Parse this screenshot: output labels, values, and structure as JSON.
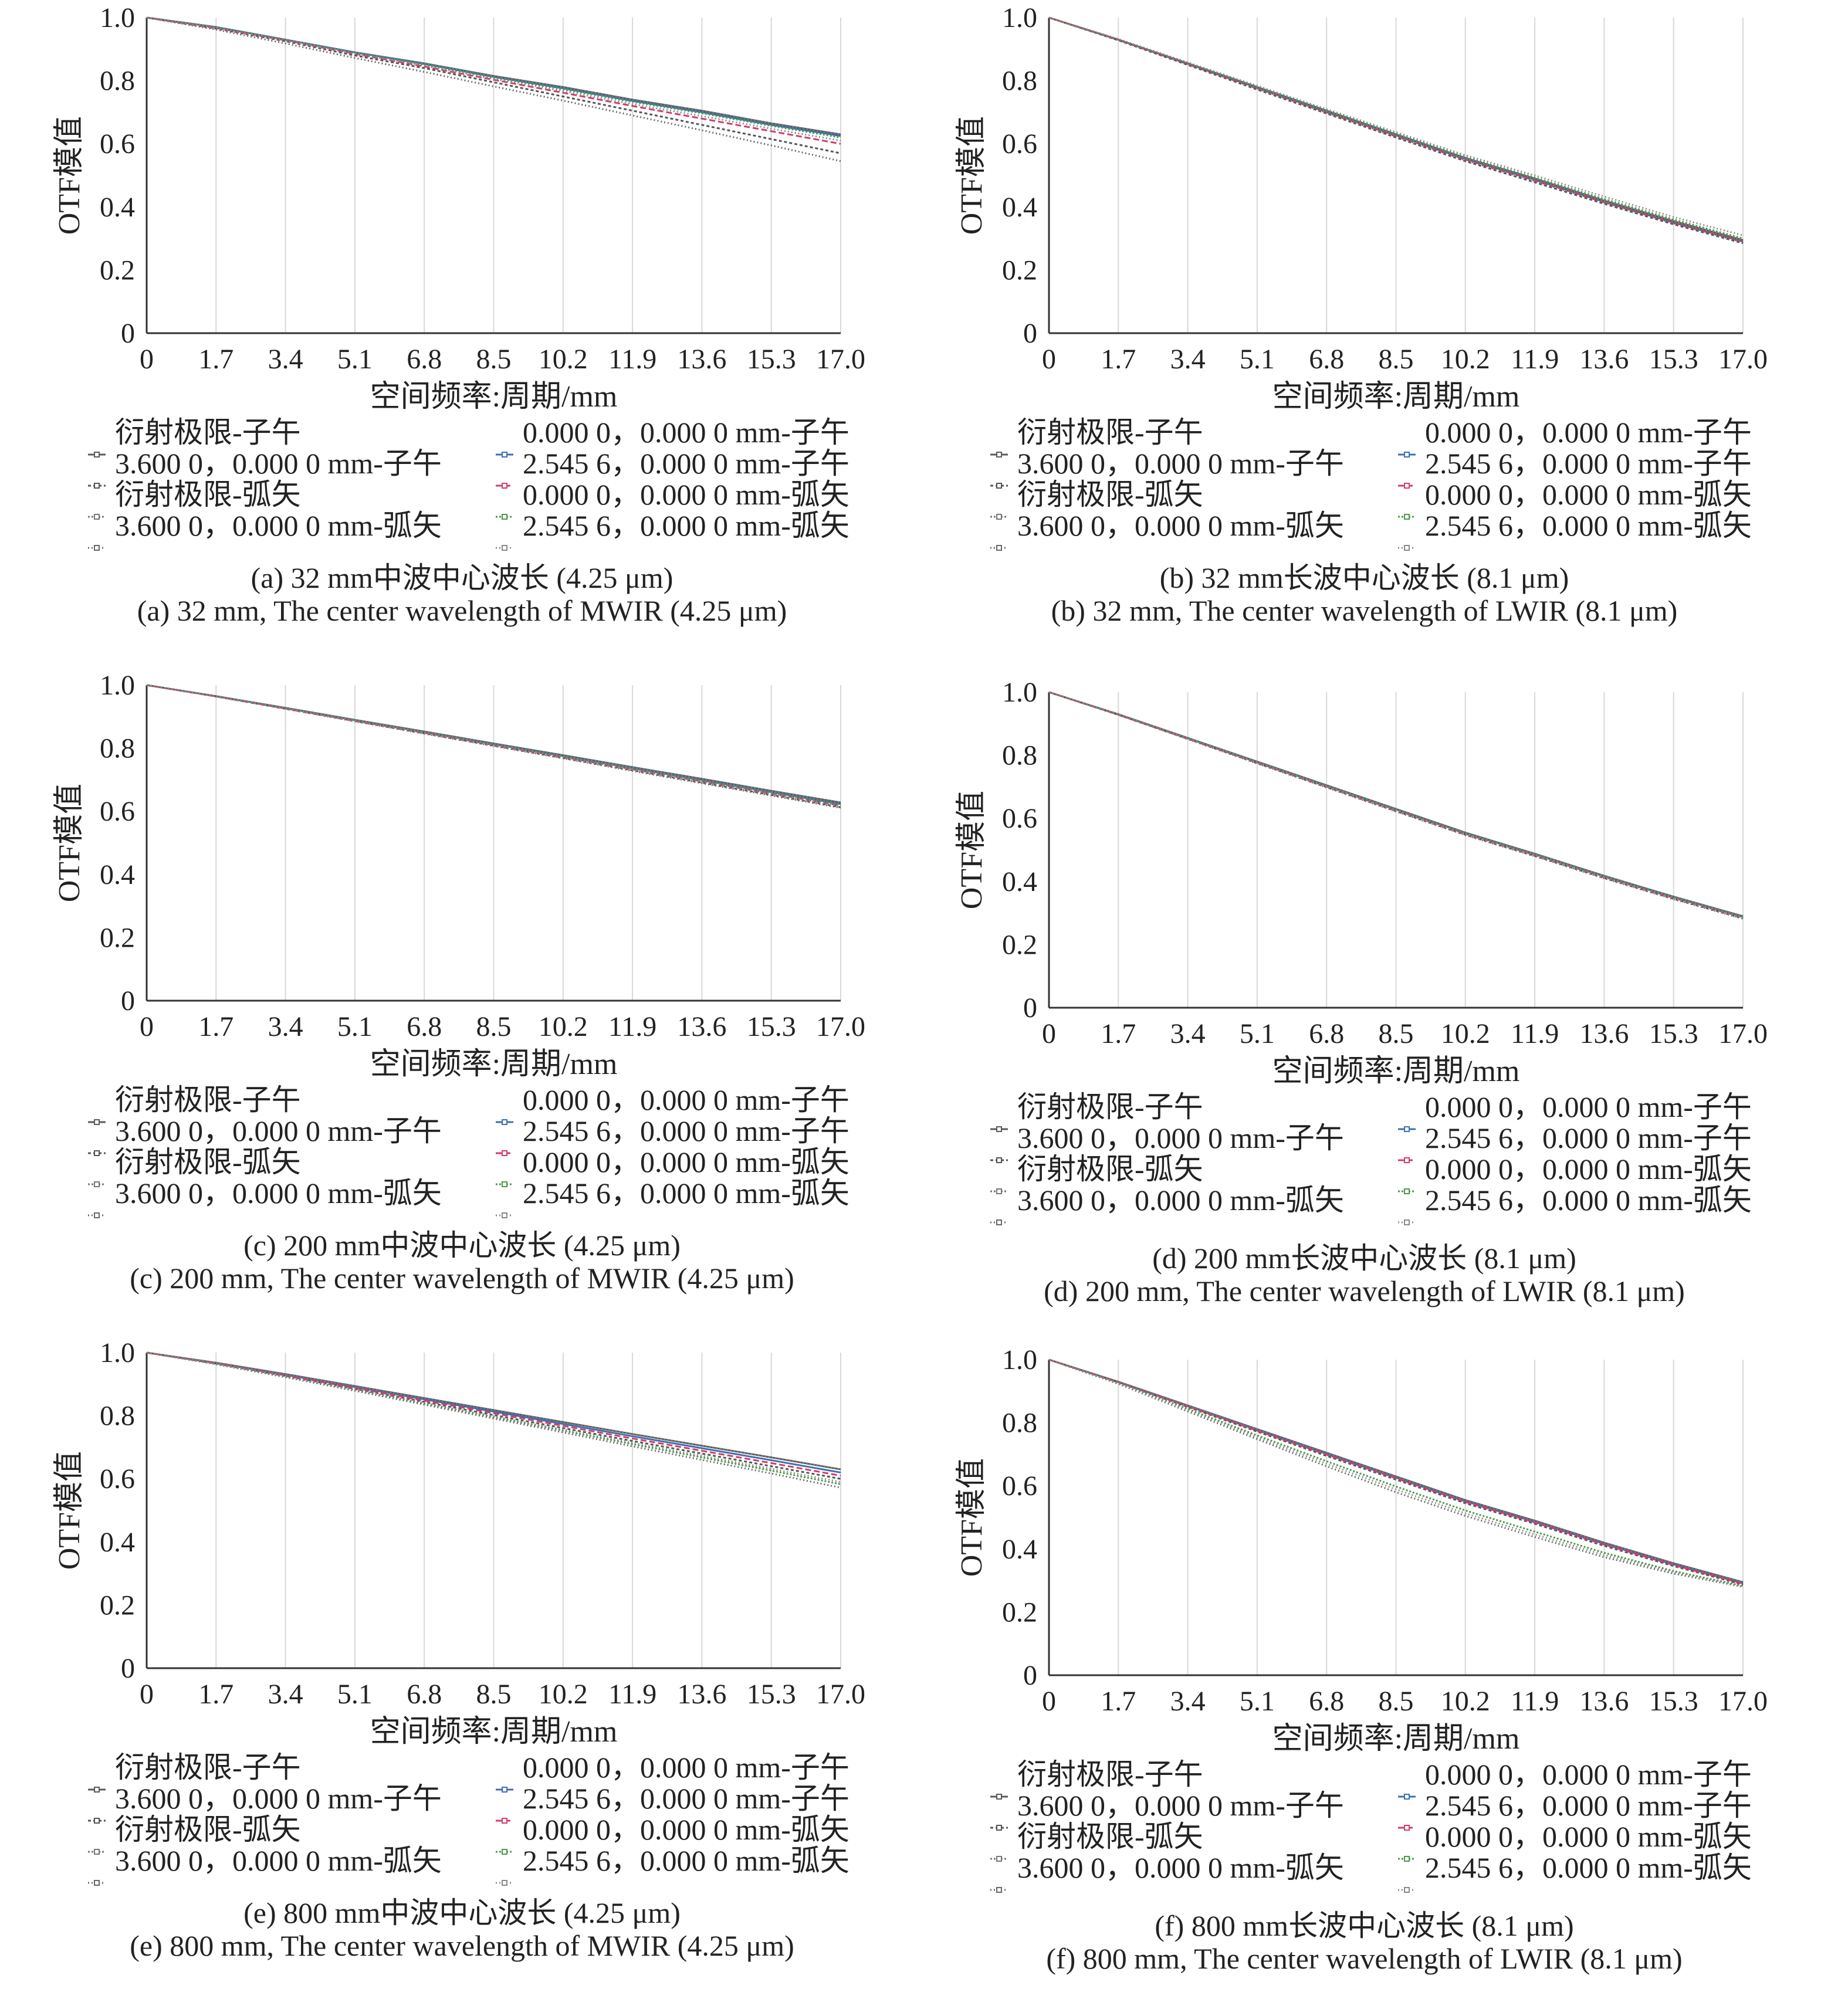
{
  "legend_template": [
    {
      "label": "衍射极限-子午",
      "color": "#5a5a5a",
      "dash": ""
    },
    {
      "label": "0.000 0，0.000 0 mm-子午",
      "color": "#3c6fb0",
      "dash": ""
    },
    {
      "label": "3.600 0，0.000 0 mm-子午",
      "color": "#555555",
      "dash": "5,4"
    },
    {
      "label": "2.545 6，0.000 0 mm-子午",
      "color": "#d33c6a",
      "dash": "10,5"
    },
    {
      "label": "衍射极限-弧矢",
      "color": "#777777",
      "dash": "3,3"
    },
    {
      "label": "0.000 0，0.000 0 mm-弧矢",
      "color": "#4a9a4a",
      "dash": "3,3"
    },
    {
      "label": "3.600 0，0.000 0 mm-弧矢",
      "color": "#666666",
      "dash": "2,4"
    },
    {
      "label": "2.545 6，0.000 0 mm-弧矢",
      "color": "#888888",
      "dash": "2,4"
    }
  ],
  "chart_data": [
    {
      "type": "line",
      "xlabel": "空间频率:周期/mm",
      "ylabel": "OTF模值",
      "xticks": [
        "0",
        "1.7",
        "3.4",
        "5.1",
        "6.8",
        "8.5",
        "10.2",
        "11.9",
        "13.6",
        "15.3",
        "17.0"
      ],
      "yticks": [
        "0",
        "0.2",
        "0.4",
        "0.6",
        "0.8",
        "1.0"
      ],
      "xlim": [
        0,
        17
      ],
      "ylim": [
        0,
        1
      ],
      "x": [
        0,
        1.7,
        3.4,
        5.1,
        6.8,
        8.5,
        10.2,
        11.9,
        13.6,
        15.3,
        17.0
      ],
      "series": [
        {
          "name": "衍射极限-子午",
          "values": [
            1.0,
            0.97,
            0.93,
            0.89,
            0.855,
            0.815,
            0.78,
            0.74,
            0.705,
            0.665,
            0.63
          ]
        },
        {
          "name": "0.000 0，0.000 0 mm-子午",
          "values": [
            1.0,
            0.97,
            0.93,
            0.89,
            0.853,
            0.812,
            0.776,
            0.736,
            0.7,
            0.66,
            0.625
          ]
        },
        {
          "name": "3.600 0，0.000 0 mm-子午",
          "values": [
            1.0,
            0.965,
            0.925,
            0.88,
            0.84,
            0.795,
            0.75,
            0.705,
            0.66,
            0.615,
            0.57
          ]
        },
        {
          "name": "2.545 6，0.000 0 mm-子午",
          "values": [
            1.0,
            0.967,
            0.928,
            0.885,
            0.845,
            0.803,
            0.762,
            0.72,
            0.68,
            0.64,
            0.6
          ]
        },
        {
          "name": "衍射极限-弧矢",
          "values": [
            1.0,
            0.97,
            0.93,
            0.89,
            0.855,
            0.815,
            0.78,
            0.74,
            0.705,
            0.665,
            0.63
          ]
        },
        {
          "name": "0.000 0，0.000 0 mm-弧矢",
          "values": [
            1.0,
            0.97,
            0.93,
            0.888,
            0.851,
            0.81,
            0.773,
            0.733,
            0.697,
            0.657,
            0.62
          ]
        },
        {
          "name": "3.600 0，0.000 0 mm-弧矢",
          "values": [
            1.0,
            0.962,
            0.918,
            0.872,
            0.828,
            0.782,
            0.737,
            0.69,
            0.643,
            0.595,
            0.545
          ]
        },
        {
          "name": "2.545 6，0.000 0 mm-弧矢",
          "values": [
            1.0,
            0.968,
            0.928,
            0.886,
            0.847,
            0.806,
            0.767,
            0.726,
            0.688,
            0.648,
            0.61
          ]
        }
      ],
      "caption_cn": "(a) 32 mm中波中心波长 (4.25 μm)",
      "caption_en": "(a) 32 mm, The center wavelength of MWIR (4.25 μm)"
    },
    {
      "type": "line",
      "xlabel": "空间频率:周期/mm",
      "ylabel": "OTF模值",
      "xticks": [
        "0",
        "1.7",
        "3.4",
        "5.1",
        "6.8",
        "8.5",
        "10.2",
        "11.9",
        "13.6",
        "15.3",
        "17.0"
      ],
      "yticks": [
        "0",
        "0.2",
        "0.4",
        "0.6",
        "0.8",
        "1.0"
      ],
      "xlim": [
        0,
        17
      ],
      "ylim": [
        0,
        1
      ],
      "x": [
        0,
        1.7,
        3.4,
        5.1,
        6.8,
        8.5,
        10.2,
        11.9,
        13.6,
        15.3,
        17.0
      ],
      "series": [
        {
          "name": "衍射极限-子午",
          "values": [
            1.0,
            0.93,
            0.855,
            0.78,
            0.705,
            0.63,
            0.555,
            0.49,
            0.42,
            0.355,
            0.295
          ]
        },
        {
          "name": "0.000 0，0.000 0 mm-子午",
          "values": [
            1.0,
            0.93,
            0.854,
            0.778,
            0.702,
            0.627,
            0.552,
            0.486,
            0.416,
            0.35,
            0.29
          ]
        },
        {
          "name": "3.600 0，0.000 0 mm-子午",
          "values": [
            1.0,
            0.928,
            0.85,
            0.772,
            0.696,
            0.62,
            0.545,
            0.478,
            0.41,
            0.345,
            0.285
          ]
        },
        {
          "name": "2.545 6，0.000 0 mm-子午",
          "values": [
            1.0,
            0.93,
            0.853,
            0.776,
            0.7,
            0.625,
            0.55,
            0.484,
            0.415,
            0.35,
            0.29
          ]
        },
        {
          "name": "衍射极限-弧矢",
          "values": [
            1.0,
            0.93,
            0.855,
            0.78,
            0.705,
            0.63,
            0.555,
            0.49,
            0.42,
            0.355,
            0.295
          ]
        },
        {
          "name": "0.000 0，0.000 0 mm-弧矢",
          "values": [
            1.0,
            0.931,
            0.856,
            0.781,
            0.706,
            0.632,
            0.558,
            0.493,
            0.425,
            0.36,
            0.3
          ]
        },
        {
          "name": "3.600 0，0.000 0 mm-弧矢",
          "values": [
            1.0,
            0.929,
            0.852,
            0.775,
            0.699,
            0.623,
            0.548,
            0.482,
            0.414,
            0.348,
            0.288
          ]
        },
        {
          "name": "2.545 6，0.000 0 mm-弧矢",
          "values": [
            1.0,
            0.932,
            0.858,
            0.784,
            0.71,
            0.637,
            0.564,
            0.5,
            0.433,
            0.368,
            0.31
          ]
        }
      ],
      "caption_cn": "(b) 32 mm长波中心波长 (8.1 μm)",
      "caption_en": "(b) 32 mm, The center wavelength of LWIR (8.1 μm)"
    },
    {
      "type": "line",
      "xlabel": "空间频率:周期/mm",
      "ylabel": "OTF模值",
      "xticks": [
        "0",
        "1.7",
        "3.4",
        "5.1",
        "6.8",
        "8.5",
        "10.2",
        "11.9",
        "13.6",
        "15.3",
        "17.0"
      ],
      "yticks": [
        "0",
        "0.2",
        "0.4",
        "0.6",
        "0.8",
        "1.0"
      ],
      "xlim": [
        0,
        17
      ],
      "ylim": [
        0,
        1
      ],
      "x": [
        0,
        1.7,
        3.4,
        5.1,
        6.8,
        8.5,
        10.2,
        11.9,
        13.6,
        15.3,
        17.0
      ],
      "series": [
        {
          "name": "衍射极限-子午",
          "values": [
            1.0,
            0.965,
            0.928,
            0.89,
            0.853,
            0.815,
            0.778,
            0.74,
            0.703,
            0.665,
            0.628
          ]
        },
        {
          "name": "0.000 0，0.000 0 mm-子午",
          "values": [
            1.0,
            0.965,
            0.927,
            0.889,
            0.851,
            0.813,
            0.775,
            0.737,
            0.699,
            0.661,
            0.623
          ]
        },
        {
          "name": "3.600 0，0.000 0 mm-子午",
          "values": [
            1.0,
            0.964,
            0.925,
            0.886,
            0.847,
            0.808,
            0.769,
            0.73,
            0.691,
            0.652,
            0.613
          ]
        },
        {
          "name": "2.545 6，0.000 0 mm-子午",
          "values": [
            1.0,
            0.964,
            0.926,
            0.887,
            0.849,
            0.81,
            0.772,
            0.733,
            0.695,
            0.656,
            0.618
          ]
        },
        {
          "name": "衍射极限-弧矢",
          "values": [
            1.0,
            0.965,
            0.928,
            0.89,
            0.853,
            0.815,
            0.778,
            0.74,
            0.703,
            0.665,
            0.628
          ]
        },
        {
          "name": "0.000 0，0.000 0 mm-弧矢",
          "values": [
            1.0,
            0.965,
            0.927,
            0.888,
            0.85,
            0.812,
            0.774,
            0.735,
            0.697,
            0.659,
            0.621
          ]
        },
        {
          "name": "3.600 0，0.000 0 mm-弧矢",
          "values": [
            1.0,
            0.964,
            0.925,
            0.885,
            0.846,
            0.807,
            0.768,
            0.728,
            0.689,
            0.65,
            0.611
          ]
        },
        {
          "name": "2.545 6，0.000 0 mm-弧矢",
          "values": [
            1.0,
            0.964,
            0.926,
            0.887,
            0.848,
            0.81,
            0.771,
            0.732,
            0.694,
            0.655,
            0.616
          ]
        }
      ],
      "caption_cn": "(c) 200 mm中波中心波长 (4.25 μm)",
      "caption_en": "(c) 200 mm, The center wavelength of MWIR (4.25 μm)"
    },
    {
      "type": "line",
      "xlabel": "空间频率:周期/mm",
      "ylabel": "OTF模值",
      "xticks": [
        "0",
        "1.7",
        "3.4",
        "5.1",
        "6.8",
        "8.5",
        "10.2",
        "11.9",
        "13.6",
        "15.3",
        "17.0"
      ],
      "yticks": [
        "0",
        "0.2",
        "0.4",
        "0.6",
        "0.8",
        "1.0"
      ],
      "xlim": [
        0,
        17
      ],
      "ylim": [
        0,
        1
      ],
      "x": [
        0,
        1.7,
        3.4,
        5.1,
        6.8,
        8.5,
        10.2,
        11.9,
        13.6,
        15.3,
        17.0
      ],
      "series": [
        {
          "name": "衍射极限-子午",
          "values": [
            1.0,
            0.93,
            0.855,
            0.78,
            0.705,
            0.63,
            0.555,
            0.488,
            0.418,
            0.352,
            0.29
          ]
        },
        {
          "name": "0.000 0，0.000 0 mm-子午",
          "values": [
            1.0,
            0.929,
            0.854,
            0.778,
            0.703,
            0.628,
            0.553,
            0.486,
            0.416,
            0.35,
            0.288
          ]
        },
        {
          "name": "3.600 0，0.000 0 mm-子午",
          "values": [
            1.0,
            0.928,
            0.852,
            0.775,
            0.699,
            0.623,
            0.548,
            0.481,
            0.411,
            0.345,
            0.283
          ]
        },
        {
          "name": "2.545 6，0.000 0 mm-子午",
          "values": [
            1.0,
            0.929,
            0.853,
            0.777,
            0.701,
            0.626,
            0.551,
            0.484,
            0.414,
            0.348,
            0.286
          ]
        },
        {
          "name": "衍射极限-弧矢",
          "values": [
            1.0,
            0.93,
            0.855,
            0.78,
            0.705,
            0.63,
            0.555,
            0.488,
            0.418,
            0.352,
            0.29
          ]
        },
        {
          "name": "0.000 0，0.000 0 mm-弧矢",
          "values": [
            1.0,
            0.93,
            0.855,
            0.779,
            0.704,
            0.629,
            0.554,
            0.487,
            0.417,
            0.351,
            0.289
          ]
        },
        {
          "name": "3.600 0，0.000 0 mm-弧矢",
          "values": [
            1.0,
            0.928,
            0.851,
            0.774,
            0.698,
            0.622,
            0.547,
            0.48,
            0.41,
            0.344,
            0.282
          ]
        },
        {
          "name": "2.545 6，0.000 0 mm-弧矢",
          "values": [
            1.0,
            0.929,
            0.853,
            0.777,
            0.701,
            0.625,
            0.55,
            0.483,
            0.413,
            0.347,
            0.285
          ]
        }
      ],
      "caption_cn": "(d) 200 mm长波中心波长 (8.1 μm)",
      "caption_en": "(d) 200 mm, The center wavelength of LWIR (8.1 μm)"
    },
    {
      "type": "line",
      "xlabel": "空间频率:周期/mm",
      "ylabel": "OTF模值",
      "xticks": [
        "0",
        "1.7",
        "3.4",
        "5.1",
        "6.8",
        "8.5",
        "10.2",
        "11.9",
        "13.6",
        "15.3",
        "17.0"
      ],
      "yticks": [
        "0",
        "0.2",
        "0.4",
        "0.6",
        "0.8",
        "1.0"
      ],
      "xlim": [
        0,
        17
      ],
      "ylim": [
        0,
        1
      ],
      "x": [
        0,
        1.7,
        3.4,
        5.1,
        6.8,
        8.5,
        10.2,
        11.9,
        13.6,
        15.3,
        17.0
      ],
      "series": [
        {
          "name": "衍射极限-子午",
          "values": [
            1.0,
            0.968,
            0.932,
            0.894,
            0.856,
            0.818,
            0.78,
            0.742,
            0.705,
            0.668,
            0.63
          ]
        },
        {
          "name": "0.000 0，0.000 0 mm-子午",
          "values": [
            1.0,
            0.967,
            0.93,
            0.891,
            0.852,
            0.813,
            0.774,
            0.735,
            0.697,
            0.659,
            0.62
          ]
        },
        {
          "name": "3.600 0，0.000 0 mm-子午",
          "values": [
            1.0,
            0.965,
            0.926,
            0.885,
            0.844,
            0.802,
            0.761,
            0.72,
            0.68,
            0.64,
            0.6
          ]
        },
        {
          "name": "2.545 6，0.000 0 mm-子午",
          "values": [
            1.0,
            0.966,
            0.928,
            0.888,
            0.848,
            0.808,
            0.768,
            0.728,
            0.689,
            0.65,
            0.61
          ]
        },
        {
          "name": "衍射极限-弧矢",
          "values": [
            1.0,
            0.968,
            0.932,
            0.894,
            0.856,
            0.818,
            0.78,
            0.742,
            0.705,
            0.668,
            0.63
          ]
        },
        {
          "name": "0.000 0，0.000 0 mm-弧矢",
          "values": [
            1.0,
            0.964,
            0.924,
            0.882,
            0.839,
            0.796,
            0.753,
            0.71,
            0.668,
            0.626,
            0.583
          ]
        },
        {
          "name": "3.600 0，0.000 0 mm-弧矢",
          "values": [
            1.0,
            0.963,
            0.922,
            0.879,
            0.835,
            0.791,
            0.747,
            0.703,
            0.66,
            0.617,
            0.572
          ]
        },
        {
          "name": "2.545 6，0.000 0 mm-弧矢",
          "values": [
            1.0,
            0.964,
            0.924,
            0.882,
            0.84,
            0.798,
            0.756,
            0.714,
            0.673,
            0.632,
            0.59
          ]
        }
      ],
      "caption_cn": "(e) 800 mm中波中心波长 (4.25 μm)",
      "caption_en": "(e) 800 mm, The center wavelength of MWIR (4.25 μm)"
    },
    {
      "type": "line",
      "xlabel": "空间频率:周期/mm",
      "ylabel": "OTF模值",
      "xticks": [
        "0",
        "1.7",
        "3.4",
        "5.1",
        "6.8",
        "8.5",
        "10.2",
        "11.9",
        "13.6",
        "15.3",
        "17.0"
      ],
      "yticks": [
        "0",
        "0.2",
        "0.4",
        "0.6",
        "0.8",
        "1.0"
      ],
      "xlim": [
        0,
        17
      ],
      "ylim": [
        0,
        1
      ],
      "x": [
        0,
        1.7,
        3.4,
        5.1,
        6.8,
        8.5,
        10.2,
        11.9,
        13.6,
        15.3,
        17.0
      ],
      "series": [
        {
          "name": "衍射极限-子午",
          "values": [
            1.0,
            0.93,
            0.855,
            0.78,
            0.705,
            0.63,
            0.555,
            0.49,
            0.42,
            0.355,
            0.295
          ]
        },
        {
          "name": "0.000 0，0.000 0 mm-子午",
          "values": [
            1.0,
            0.929,
            0.853,
            0.777,
            0.701,
            0.626,
            0.551,
            0.486,
            0.416,
            0.351,
            0.291
          ]
        },
        {
          "name": "3.600 0，0.000 0 mm-子午",
          "values": [
            1.0,
            0.928,
            0.85,
            0.772,
            0.695,
            0.62,
            0.545,
            0.48,
            0.41,
            0.346,
            0.287
          ]
        },
        {
          "name": "2.545 6，0.000 0 mm-子午",
          "values": [
            1.0,
            0.929,
            0.852,
            0.775,
            0.699,
            0.624,
            0.549,
            0.484,
            0.414,
            0.349,
            0.29
          ]
        },
        {
          "name": "衍射极限-弧矢",
          "values": [
            1.0,
            0.93,
            0.855,
            0.78,
            0.705,
            0.63,
            0.555,
            0.49,
            0.42,
            0.355,
            0.295
          ]
        },
        {
          "name": "0.000 0，0.000 0 mm-弧矢",
          "values": [
            1.0,
            0.926,
            0.844,
            0.76,
            0.678,
            0.598,
            0.522,
            0.455,
            0.388,
            0.33,
            0.283
          ]
        },
        {
          "name": "3.600 0，0.000 0 mm-弧矢",
          "values": [
            1.0,
            0.923,
            0.836,
            0.748,
            0.662,
            0.58,
            0.505,
            0.438,
            0.374,
            0.322,
            0.28
          ]
        },
        {
          "name": "2.545 6，0.000 0 mm-弧矢",
          "values": [
            1.0,
            0.925,
            0.84,
            0.754,
            0.67,
            0.589,
            0.513,
            0.446,
            0.381,
            0.326,
            0.282
          ]
        }
      ],
      "caption_cn": "(f) 800 mm长波中心波长 (8.1 μm)",
      "caption_en": "(f) 800 mm, The center wavelength of LWIR (8.1 μm)"
    }
  ]
}
